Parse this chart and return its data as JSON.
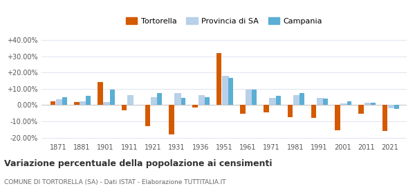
{
  "years": [
    1871,
    1881,
    1901,
    1911,
    1921,
    1931,
    1936,
    1951,
    1961,
    1971,
    1981,
    1991,
    2001,
    2011,
    2021
  ],
  "tortorella": [
    2.5,
    2.0,
    14.0,
    -3.0,
    -13.0,
    -18.0,
    -1.5,
    32.0,
    -5.5,
    -4.5,
    -7.5,
    -8.0,
    -15.5,
    -5.5,
    -16.0
  ],
  "provincia_sa": [
    3.5,
    2.5,
    2.0,
    6.0,
    5.0,
    7.5,
    6.0,
    18.0,
    9.5,
    4.5,
    6.0,
    4.5,
    1.0,
    1.5,
    -2.0
  ],
  "campania": [
    5.0,
    5.5,
    9.5,
    0.0,
    7.5,
    4.5,
    5.0,
    16.5,
    9.5,
    5.5,
    7.5,
    4.0,
    2.5,
    1.5,
    -2.5
  ],
  "campania_mask": [
    1,
    1,
    1,
    0,
    1,
    1,
    1,
    1,
    1,
    1,
    1,
    1,
    1,
    1,
    1
  ],
  "color_tortorella": "#d45a00",
  "color_provincia": "#b8d0e8",
  "color_campania": "#5baed4",
  "title": "Variazione percentuale della popolazione ai censimenti",
  "subtitle": "COMUNE DI TORTORELLA (SA) - Dati ISTAT - Elaborazione TUTTITALIA.IT",
  "ylim": [
    -22,
    42
  ],
  "yticks": [
    -20,
    -10,
    0,
    10,
    20,
    30,
    40
  ],
  "ytick_labels": [
    "-20.00%",
    "-10.00%",
    "0.00%",
    "+10.00%",
    "+20.00%",
    "+30.00%",
    "+40.00%"
  ],
  "background_color": "#ffffff",
  "grid_color": "#dde4ef"
}
